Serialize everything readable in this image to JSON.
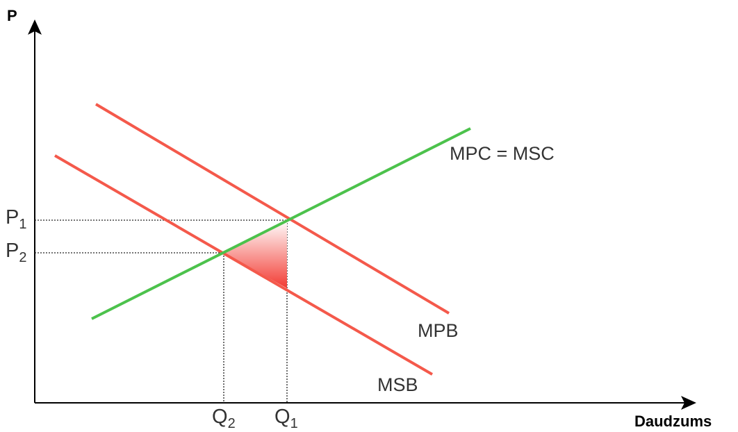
{
  "axes": {
    "y_label": "P",
    "x_label": "Daudzums"
  },
  "curves": {
    "supply_label": "MPC = MSC",
    "mpb_label": "MPB",
    "msb_label": "MSB"
  },
  "ticks": {
    "p1": {
      "base": "P",
      "sub": "1"
    },
    "p2": {
      "base": "P",
      "sub": "2"
    },
    "q1": {
      "base": "Q",
      "sub": "1"
    },
    "q2": {
      "base": "Q",
      "sub": "2"
    }
  },
  "colors": {
    "supply": "#4cc24c",
    "demand": "#f4594b",
    "triangle_light": "#ffffff",
    "triangle_dark": "#f23b33"
  }
}
